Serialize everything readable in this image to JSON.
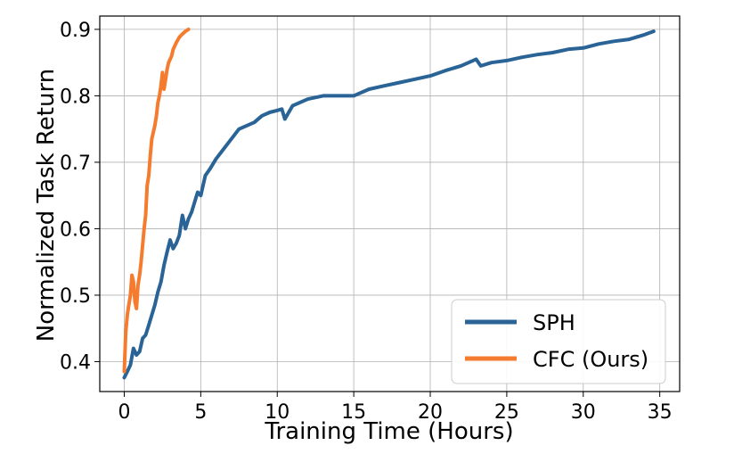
{
  "chart_data": {
    "type": "line",
    "title": "",
    "xlabel": "Training Time (Hours)",
    "ylabel": "Normalized Task Return",
    "xlim": [
      -1.6,
      36.3
    ],
    "ylim": [
      0.355,
      0.92
    ],
    "xticks": [
      0,
      5,
      10,
      15,
      20,
      25,
      30,
      35
    ],
    "yticks": [
      0.4,
      0.5,
      0.6,
      0.7,
      0.8,
      0.9
    ],
    "grid": true,
    "legend_position": "lower-right",
    "series": [
      {
        "name": "SPH",
        "color": "#2a6496",
        "x": [
          0,
          0.2,
          0.4,
          0.6,
          0.8,
          1.0,
          1.2,
          1.4,
          1.6,
          1.8,
          2.0,
          2.2,
          2.4,
          2.6,
          2.8,
          3.0,
          3.2,
          3.4,
          3.6,
          3.8,
          4.0,
          4.2,
          4.4,
          4.6,
          4.8,
          5.0,
          5.3,
          5.6,
          6.0,
          6.5,
          7.0,
          7.5,
          8.0,
          8.5,
          9.0,
          9.5,
          10.0,
          10.3,
          10.5,
          11.0,
          12.0,
          13.0,
          14.0,
          15.0,
          16.0,
          17.0,
          18.0,
          19.0,
          20.0,
          21.0,
          22.0,
          22.5,
          23.0,
          23.3,
          24.0,
          25.0,
          26.0,
          27.0,
          28.0,
          29.0,
          30.0,
          31.0,
          32.0,
          33.0,
          34.0,
          34.6
        ],
        "y": [
          0.376,
          0.385,
          0.395,
          0.42,
          0.41,
          0.415,
          0.435,
          0.44,
          0.455,
          0.47,
          0.485,
          0.505,
          0.52,
          0.545,
          0.565,
          0.583,
          0.57,
          0.578,
          0.59,
          0.62,
          0.6,
          0.615,
          0.625,
          0.64,
          0.655,
          0.65,
          0.68,
          0.69,
          0.705,
          0.72,
          0.735,
          0.75,
          0.755,
          0.76,
          0.77,
          0.775,
          0.778,
          0.78,
          0.765,
          0.785,
          0.795,
          0.8,
          0.8,
          0.8,
          0.81,
          0.815,
          0.82,
          0.825,
          0.83,
          0.838,
          0.845,
          0.85,
          0.855,
          0.845,
          0.85,
          0.853,
          0.858,
          0.862,
          0.865,
          0.87,
          0.872,
          0.878,
          0.882,
          0.885,
          0.892,
          0.897
        ]
      },
      {
        "name": "CFC (Ours)",
        "color": "#f57c2e",
        "x": [
          0,
          0.1,
          0.2,
          0.3,
          0.4,
          0.5,
          0.6,
          0.7,
          0.8,
          0.9,
          1.0,
          1.1,
          1.2,
          1.3,
          1.4,
          1.5,
          1.6,
          1.7,
          1.8,
          1.9,
          2.0,
          2.1,
          2.2,
          2.3,
          2.4,
          2.5,
          2.6,
          2.7,
          2.8,
          2.9,
          3.0,
          3.1,
          3.2,
          3.4,
          3.6,
          3.8,
          4.0,
          4.2
        ],
        "y": [
          0.385,
          0.445,
          0.47,
          0.485,
          0.5,
          0.53,
          0.52,
          0.49,
          0.48,
          0.515,
          0.53,
          0.55,
          0.575,
          0.6,
          0.62,
          0.665,
          0.68,
          0.71,
          0.735,
          0.745,
          0.755,
          0.77,
          0.79,
          0.8,
          0.815,
          0.835,
          0.81,
          0.825,
          0.84,
          0.85,
          0.855,
          0.86,
          0.87,
          0.88,
          0.888,
          0.893,
          0.897,
          0.9
        ]
      }
    ]
  }
}
